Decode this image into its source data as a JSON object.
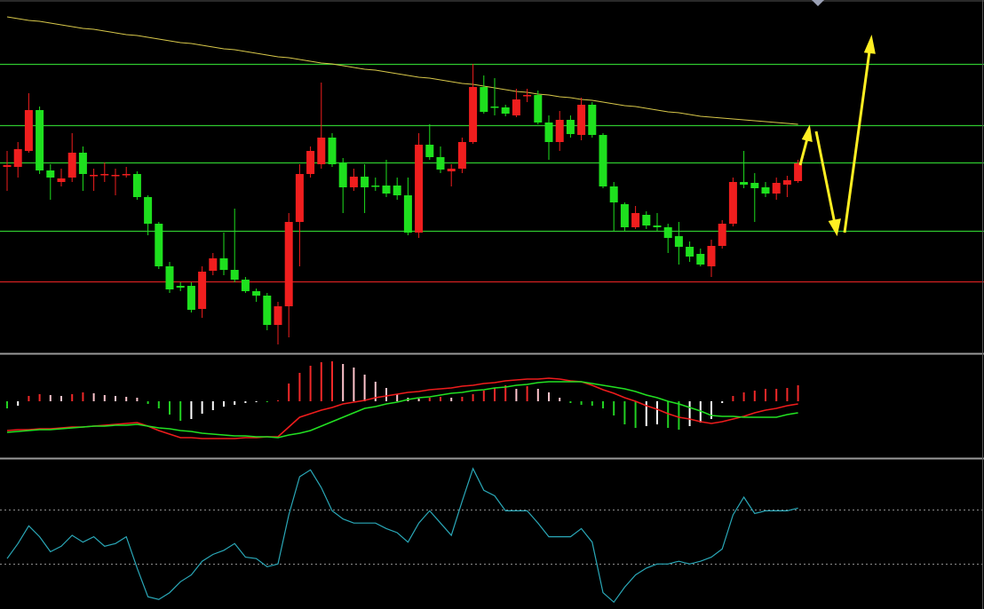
{
  "chart_data": [
    {
      "type": "candlestick",
      "ylim": [
        0,
        400
      ],
      "colors": {
        "up": "#f01e1e",
        "down": "#1ee01e"
      },
      "candles": [
        {
          "open": 212,
          "high": 230,
          "low": 185,
          "close": 214
        },
        {
          "open": 212,
          "high": 240,
          "low": 200,
          "close": 232
        },
        {
          "open": 230,
          "high": 295,
          "low": 228,
          "close": 276
        },
        {
          "open": 276,
          "high": 280,
          "low": 204,
          "close": 208
        },
        {
          "open": 208,
          "high": 215,
          "low": 175,
          "close": 200
        },
        {
          "open": 195,
          "high": 210,
          "low": 190,
          "close": 199
        },
        {
          "open": 200,
          "high": 250,
          "low": 195,
          "close": 228
        },
        {
          "open": 228,
          "high": 235,
          "low": 185,
          "close": 204
        },
        {
          "open": 203,
          "high": 210,
          "low": 185,
          "close": 203
        },
        {
          "open": 204,
          "high": 217,
          "low": 195,
          "close": 204
        },
        {
          "open": 203,
          "high": 210,
          "low": 180,
          "close": 203
        },
        {
          "open": 204,
          "high": 212,
          "low": 200,
          "close": 204
        },
        {
          "open": 204,
          "high": 207,
          "low": 175,
          "close": 178
        },
        {
          "open": 178,
          "high": 180,
          "low": 135,
          "close": 148
        },
        {
          "open": 148,
          "high": 150,
          "low": 97,
          "close": 100
        },
        {
          "open": 100,
          "high": 105,
          "low": 70,
          "close": 74
        },
        {
          "open": 78,
          "high": 82,
          "low": 72,
          "close": 76
        },
        {
          "open": 78,
          "high": 82,
          "low": 48,
          "close": 51
        },
        {
          "open": 52,
          "high": 100,
          "low": 42,
          "close": 94
        },
        {
          "open": 95,
          "high": 115,
          "low": 90,
          "close": 109
        },
        {
          "open": 109,
          "high": 138,
          "low": 90,
          "close": 96
        },
        {
          "open": 96,
          "high": 165,
          "low": 82,
          "close": 85
        },
        {
          "open": 85,
          "high": 88,
          "low": 70,
          "close": 72
        },
        {
          "open": 72,
          "high": 75,
          "low": 60,
          "close": 67
        },
        {
          "open": 67,
          "high": 70,
          "low": 28,
          "close": 34
        },
        {
          "open": 34,
          "high": 60,
          "low": 12,
          "close": 55
        },
        {
          "open": 55,
          "high": 160,
          "low": 20,
          "close": 150
        },
        {
          "open": 150,
          "high": 215,
          "low": 100,
          "close": 204
        },
        {
          "open": 204,
          "high": 235,
          "low": 200,
          "close": 230
        },
        {
          "open": 215,
          "high": 307,
          "low": 210,
          "close": 245
        },
        {
          "open": 245,
          "high": 250,
          "low": 212,
          "close": 215
        },
        {
          "open": 217,
          "high": 222,
          "low": 160,
          "close": 189
        },
        {
          "open": 189,
          "high": 210,
          "low": 185,
          "close": 201
        },
        {
          "open": 201,
          "high": 215,
          "low": 160,
          "close": 189
        },
        {
          "open": 191,
          "high": 200,
          "low": 185,
          "close": 190
        },
        {
          "open": 191,
          "high": 220,
          "low": 178,
          "close": 182
        },
        {
          "open": 191,
          "high": 200,
          "low": 175,
          "close": 180
        },
        {
          "open": 180,
          "high": 200,
          "low": 135,
          "close": 138
        },
        {
          "open": 138,
          "high": 250,
          "low": 132,
          "close": 237
        },
        {
          "open": 237,
          "high": 260,
          "low": 220,
          "close": 223
        },
        {
          "open": 223,
          "high": 235,
          "low": 205,
          "close": 209
        },
        {
          "open": 207,
          "high": 215,
          "low": 190,
          "close": 210
        },
        {
          "open": 210,
          "high": 245,
          "low": 205,
          "close": 240
        },
        {
          "open": 240,
          "high": 328,
          "low": 238,
          "close": 302
        },
        {
          "open": 302,
          "high": 315,
          "low": 272,
          "close": 274
        },
        {
          "open": 280,
          "high": 312,
          "low": 270,
          "close": 279
        },
        {
          "open": 279,
          "high": 282,
          "low": 269,
          "close": 272
        },
        {
          "open": 270,
          "high": 300,
          "low": 268,
          "close": 288
        },
        {
          "open": 293,
          "high": 300,
          "low": 285,
          "close": 293
        },
        {
          "open": 293,
          "high": 298,
          "low": 260,
          "close": 262
        },
        {
          "open": 262,
          "high": 270,
          "low": 220,
          "close": 240
        },
        {
          "open": 240,
          "high": 275,
          "low": 230,
          "close": 265
        },
        {
          "open": 265,
          "high": 270,
          "low": 245,
          "close": 249
        },
        {
          "open": 248,
          "high": 290,
          "low": 242,
          "close": 282
        },
        {
          "open": 282,
          "high": 285,
          "low": 245,
          "close": 248
        },
        {
          "open": 248,
          "high": 250,
          "low": 188,
          "close": 190
        },
        {
          "open": 190,
          "high": 195,
          "low": 140,
          "close": 172
        },
        {
          "open": 170,
          "high": 172,
          "low": 140,
          "close": 144
        },
        {
          "open": 144,
          "high": 168,
          "low": 142,
          "close": 160
        },
        {
          "open": 158,
          "high": 162,
          "low": 142,
          "close": 146
        },
        {
          "open": 146,
          "high": 160,
          "low": 140,
          "close": 144
        },
        {
          "open": 144,
          "high": 148,
          "low": 115,
          "close": 132
        },
        {
          "open": 134,
          "high": 150,
          "low": 102,
          "close": 122
        },
        {
          "open": 122,
          "high": 128,
          "low": 105,
          "close": 111
        },
        {
          "open": 114,
          "high": 120,
          "low": 100,
          "close": 102
        },
        {
          "open": 100,
          "high": 130,
          "low": 88,
          "close": 123
        },
        {
          "open": 123,
          "high": 152,
          "low": 120,
          "close": 148
        },
        {
          "open": 148,
          "high": 200,
          "low": 145,
          "close": 195
        },
        {
          "open": 195,
          "high": 230,
          "low": 188,
          "close": 192
        },
        {
          "open": 194,
          "high": 205,
          "low": 150,
          "close": 188
        },
        {
          "open": 189,
          "high": 195,
          "low": 178,
          "close": 182
        },
        {
          "open": 182,
          "high": 200,
          "low": 175,
          "close": 194
        },
        {
          "open": 192,
          "high": 202,
          "low": 178,
          "close": 197
        },
        {
          "open": 196,
          "high": 220,
          "low": 194,
          "close": 216
        }
      ],
      "moving_average": {
        "color": "#d8c84a",
        "values": [
          381,
          379,
          377,
          376,
          374,
          372,
          370,
          368,
          367,
          365,
          363,
          361,
          360,
          358,
          356,
          354,
          352,
          351,
          349,
          347,
          345,
          344,
          342,
          340,
          338,
          336,
          335,
          333,
          331,
          329,
          328,
          326,
          324,
          322,
          321,
          319,
          317,
          315,
          313,
          312,
          310,
          308,
          306,
          305,
          303,
          301,
          299,
          297,
          296,
          294,
          293,
          291,
          290,
          288,
          287,
          285,
          283,
          281,
          280,
          278,
          276,
          274,
          273,
          271,
          269,
          268,
          267,
          266,
          265,
          264,
          263,
          262,
          261,
          260
        ]
      },
      "levels": [
        {
          "value": 328,
          "color": "#2ec82e"
        },
        {
          "value": 259,
          "color": "#2ec82e"
        },
        {
          "value": 217,
          "color": "#2ec82e"
        },
        {
          "value": 140,
          "color": "#2ec82e"
        },
        {
          "value": 83,
          "color": "#d42020"
        }
      ]
    },
    {
      "type": "macd",
      "ylim": [
        -60,
        50
      ],
      "colors": {
        "positive_rising": "#f02828",
        "positive_falling": "#ffc4cc",
        "negative_falling": "#22d022",
        "negative_rising": "#ffffff"
      },
      "histogram": [
        -8,
        -5,
        6,
        8,
        7,
        6,
        8,
        10,
        9,
        7,
        6,
        5,
        4,
        -3,
        -8,
        -15,
        -22,
        -20,
        -14,
        -10,
        -6,
        -4,
        -2,
        -1,
        -1,
        1,
        20,
        32,
        40,
        44,
        45,
        42,
        38,
        30,
        22,
        15,
        8,
        4,
        3,
        4,
        5,
        4,
        5,
        8,
        12,
        15,
        18,
        14,
        17,
        14,
        10,
        4,
        -2,
        -4,
        -5,
        -8,
        -16,
        -26,
        -30,
        -28,
        -26,
        -30,
        -32,
        -28,
        -24,
        -20,
        -2,
        6,
        10,
        12,
        14,
        14,
        15,
        18
      ],
      "series": [
        {
          "color": "#ee1c1c",
          "values": [
            -33,
            -32,
            -32,
            -31,
            -31,
            -30,
            -29,
            -29,
            -28,
            -27,
            -26,
            -25,
            -24,
            -28,
            -33,
            -37,
            -41,
            -41,
            -42,
            -42,
            -42,
            -42,
            -41,
            -41,
            -40,
            -40,
            -29,
            -18,
            -14,
            -10,
            -7,
            -3,
            -1,
            1,
            4,
            6,
            8,
            10,
            11,
            13,
            14,
            15,
            17,
            18,
            20,
            21,
            23,
            24,
            25,
            25,
            26,
            25,
            23,
            22,
            18,
            13,
            9,
            4,
            0,
            -5,
            -9,
            -14,
            -18,
            -20,
            -23,
            -25,
            -23,
            -20,
            -17,
            -13,
            -10,
            -8,
            -5,
            -3
          ]
        },
        {
          "color": "#22e022",
          "values": [
            -35,
            -34,
            -33,
            -32,
            -32,
            -31,
            -30,
            -29,
            -28,
            -28,
            -27,
            -27,
            -26,
            -28,
            -30,
            -31,
            -33,
            -34,
            -36,
            -37,
            -38,
            -39,
            -39,
            -40,
            -40,
            -41,
            -38,
            -36,
            -33,
            -28,
            -23,
            -18,
            -13,
            -8,
            -6,
            -3,
            -1,
            2,
            4,
            5,
            7,
            9,
            10,
            12,
            13,
            15,
            16,
            18,
            19,
            21,
            22,
            22,
            22,
            22,
            20,
            18,
            16,
            14,
            11,
            7,
            4,
            0,
            -3,
            -7,
            -11,
            -16,
            -17,
            -17,
            -18,
            -18,
            -18,
            -18,
            -15,
            -13
          ]
        }
      ]
    },
    {
      "type": "line",
      "ylim": [
        -3,
        107
      ],
      "levels": [
        30,
        70
      ],
      "series": [
        {
          "color": "#2aa8b8",
          "values": [
            34,
            45,
            58,
            50,
            39,
            43,
            51,
            46,
            50,
            43,
            45,
            50,
            27,
            6,
            4,
            9,
            17,
            22,
            32,
            37,
            40,
            45,
            35,
            34,
            28,
            30,
            66,
            94,
            99,
            86,
            69,
            63,
            60,
            60,
            60,
            56,
            53,
            46,
            60,
            69,
            60,
            51,
            76,
            100,
            84,
            80,
            69,
            69,
            69,
            60,
            50,
            50,
            50,
            56,
            46,
            9,
            2,
            13,
            22,
            27,
            30,
            30,
            32,
            30,
            32,
            35,
            41,
            66,
            79,
            67,
            69,
            69,
            69,
            71
          ]
        }
      ]
    }
  ]
}
